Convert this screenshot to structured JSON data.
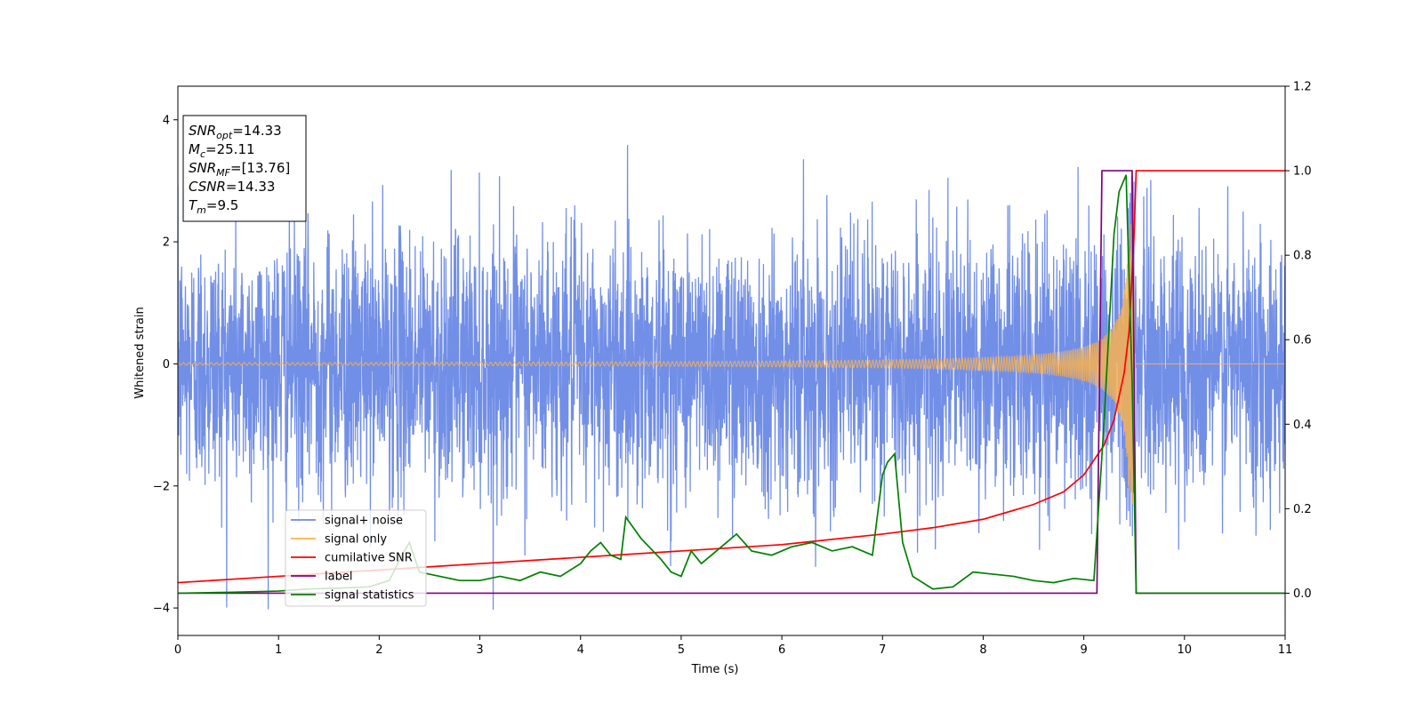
{
  "chart_data": {
    "type": "line",
    "xlabel": "Time (s)",
    "ylabel": "Whitened strain",
    "xlim": [
      0,
      11
    ],
    "ylim": [
      -4.45,
      4.55
    ],
    "y2lim": [
      -0.1,
      1.2
    ],
    "x_ticks": [
      "0",
      "1",
      "2",
      "3",
      "4",
      "5",
      "6",
      "7",
      "8",
      "9",
      "10",
      "11"
    ],
    "y_ticks": [
      "−4",
      "−2",
      "0",
      "2",
      "4"
    ],
    "y2_ticks": [
      "0.0",
      "0.2",
      "0.4",
      "0.6",
      "0.8",
      "1.0",
      "1.2"
    ],
    "annotation": {
      "lines": [
        {
          "sym": "SNR",
          "sub": "opt",
          "value": "=14.33"
        },
        {
          "sym": "M",
          "sub": "c",
          "value": "=25.11"
        },
        {
          "sym": "SNR",
          "sub": "MF",
          "value": "=[13.76]"
        },
        {
          "sym": "CSNR",
          "sub": "",
          "value": "=14.33"
        },
        {
          "sym": "T",
          "sub": "m",
          "value": "=9.5"
        }
      ]
    },
    "legend": {
      "placement": "lower-left",
      "entries": [
        {
          "label": "signal+ noise",
          "color": "#6a89e6"
        },
        {
          "label": "signal only",
          "color": "#ffb347"
        },
        {
          "label": "cumilative SNR",
          "color": "#ff0000"
        },
        {
          "label": "label",
          "color": "#800080"
        },
        {
          "label": "signal statistics",
          "color": "#008000"
        }
      ]
    },
    "series": [
      {
        "name": "signal+ noise",
        "axis": "left",
        "color": "#6a89e6",
        "description": "whitened noisy strain, amplitude roughly ±2 to ±4"
      },
      {
        "name": "signal only",
        "axis": "left",
        "color": "#ffb347",
        "chirp": {
          "merger_time": 9.5,
          "start_amplitude": 0.02,
          "peak_amplitude": 2.3
        }
      },
      {
        "name": "cumilative SNR",
        "axis": "right",
        "color": "#ff0000",
        "x": [
          0,
          1,
          2,
          3,
          4,
          5,
          6,
          7,
          7.5,
          8,
          8.5,
          8.8,
          9.0,
          9.2,
          9.3,
          9.4,
          9.45,
          9.5,
          9.52,
          11
        ],
        "y": [
          0.025,
          0.04,
          0.055,
          0.07,
          0.085,
          0.1,
          0.115,
          0.14,
          0.155,
          0.175,
          0.21,
          0.24,
          0.28,
          0.35,
          0.41,
          0.52,
          0.62,
          0.85,
          1.0,
          1.0
        ]
      },
      {
        "name": "label",
        "axis": "right",
        "color": "#800080",
        "x": [
          0,
          9.13,
          9.18,
          9.48,
          9.52,
          11
        ],
        "y": [
          0.0,
          0.0,
          1.0,
          1.0,
          0.0,
          0.0
        ]
      },
      {
        "name": "signal statistics",
        "axis": "right",
        "color": "#008000",
        "x": [
          0,
          0.5,
          1.0,
          1.3,
          1.6,
          1.9,
          2.1,
          2.25,
          2.3,
          2.4,
          2.6,
          2.8,
          3.0,
          3.2,
          3.4,
          3.6,
          3.8,
          4.0,
          4.1,
          4.2,
          4.3,
          4.4,
          4.45,
          4.6,
          4.8,
          4.9,
          5.0,
          5.1,
          5.2,
          5.3,
          5.45,
          5.55,
          5.7,
          5.9,
          6.1,
          6.3,
          6.5,
          6.7,
          6.9,
          7.0,
          7.05,
          7.12,
          7.2,
          7.3,
          7.5,
          7.7,
          7.9,
          8.1,
          8.3,
          8.5,
          8.7,
          8.9,
          9.1,
          9.2,
          9.3,
          9.35,
          9.42,
          9.48,
          9.52,
          11
        ],
        "y": [
          0.0,
          0.002,
          0.005,
          0.01,
          0.012,
          0.015,
          0.03,
          0.1,
          0.12,
          0.05,
          0.04,
          0.03,
          0.03,
          0.04,
          0.03,
          0.05,
          0.04,
          0.07,
          0.1,
          0.12,
          0.09,
          0.08,
          0.18,
          0.13,
          0.08,
          0.05,
          0.04,
          0.1,
          0.07,
          0.09,
          0.12,
          0.14,
          0.1,
          0.09,
          0.11,
          0.12,
          0.1,
          0.11,
          0.09,
          0.28,
          0.31,
          0.33,
          0.12,
          0.04,
          0.01,
          0.015,
          0.05,
          0.045,
          0.04,
          0.03,
          0.025,
          0.035,
          0.03,
          0.4,
          0.85,
          0.95,
          0.99,
          0.5,
          0.0,
          0.0
        ]
      }
    ]
  }
}
